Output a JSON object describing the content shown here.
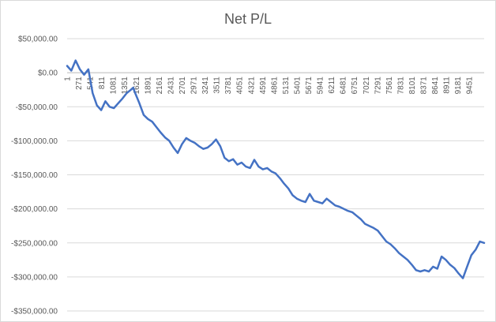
{
  "chart_data": {
    "type": "line",
    "title": "Net P/L",
    "xlabel": "",
    "ylabel": "",
    "xlim": [
      1,
      9800
    ],
    "ylim": [
      -350000,
      50000
    ],
    "grid": "horizontal",
    "legend": "none",
    "line_color": "#4472c4",
    "gridline_color": "#d9d9d9",
    "y_ticks": [
      {
        "value": 50000,
        "label": "$50,000.00"
      },
      {
        "value": 0,
        "label": "$0.00"
      },
      {
        "value": -50000,
        "label": "-$50,000.00"
      },
      {
        "value": -100000,
        "label": "-$100,000.00"
      },
      {
        "value": -150000,
        "label": "-$150,000.00"
      },
      {
        "value": -200000,
        "label": "-$200,000.00"
      },
      {
        "value": -250000,
        "label": "-$250,000.00"
      },
      {
        "value": -300000,
        "label": "-$300,000.00"
      },
      {
        "value": -350000,
        "label": "-$350,000.00"
      }
    ],
    "x_tick_labels": [
      "1",
      "271",
      "541",
      "811",
      "1081",
      "1351",
      "1621",
      "1891",
      "2161",
      "2431",
      "2701",
      "2971",
      "3241",
      "3511",
      "3781",
      "4051",
      "4321",
      "4591",
      "4861",
      "5131",
      "5401",
      "5671",
      "5941",
      "6211",
      "6481",
      "6751",
      "7021",
      "7291",
      "7561",
      "7831",
      "8101",
      "8371",
      "8641",
      "8911",
      "9181",
      "9451"
    ],
    "series": [
      {
        "x": [
          1,
          100,
          200,
          300,
          400,
          500,
          600,
          700,
          800,
          900,
          1000,
          1100,
          1200,
          1300,
          1400,
          1500,
          1550,
          1600,
          1700,
          1800,
          1900,
          2000,
          2100,
          2200,
          2300,
          2400,
          2500,
          2600,
          2700,
          2800,
          2900,
          3000,
          3100,
          3200,
          3300,
          3400,
          3500,
          3600,
          3700,
          3800,
          3900,
          4000,
          4100,
          4200,
          4300,
          4400,
          4500,
          4600,
          4700,
          4800,
          4900,
          5000,
          5100,
          5200,
          5300,
          5400,
          5500,
          5600,
          5700,
          5800,
          5900,
          6000,
          6100,
          6200,
          6300,
          6400,
          6500,
          6600,
          6700,
          6800,
          6900,
          7000,
          7100,
          7200,
          7300,
          7400,
          7500,
          7600,
          7700,
          7800,
          7900,
          8000,
          8100,
          8200,
          8300,
          8400,
          8500,
          8600,
          8700,
          8800,
          8900,
          9000,
          9100,
          9200,
          9300,
          9400,
          9500,
          9600,
          9700,
          9800
        ],
        "values": [
          10000,
          3000,
          18000,
          5000,
          -3000,
          5000,
          -30000,
          -48000,
          -55000,
          -42000,
          -50000,
          -52000,
          -45000,
          -38000,
          -30000,
          -25000,
          -22000,
          -30000,
          -45000,
          -62000,
          -68000,
          -72000,
          -80000,
          -88000,
          -95000,
          -100000,
          -110000,
          -118000,
          -105000,
          -96000,
          -100000,
          -103000,
          -108000,
          -112000,
          -110000,
          -105000,
          -98000,
          -108000,
          -125000,
          -130000,
          -127000,
          -135000,
          -132000,
          -138000,
          -140000,
          -128000,
          -138000,
          -142000,
          -140000,
          -145000,
          -148000,
          -155000,
          -163000,
          -170000,
          -180000,
          -185000,
          -188000,
          -190000,
          -178000,
          -188000,
          -190000,
          -192000,
          -185000,
          -190000,
          -195000,
          -197000,
          -200000,
          -203000,
          -205000,
          -210000,
          -215000,
          -222000,
          -225000,
          -228000,
          -232000,
          -240000,
          -248000,
          -252000,
          -258000,
          -265000,
          -270000,
          -275000,
          -282000,
          -290000,
          -292000,
          -290000,
          -292000,
          -285000,
          -288000,
          -270000,
          -275000,
          -282000,
          -287000,
          -295000,
          -302000,
          -285000,
          -268000,
          -260000,
          -248000,
          -250000
        ]
      }
    ]
  }
}
